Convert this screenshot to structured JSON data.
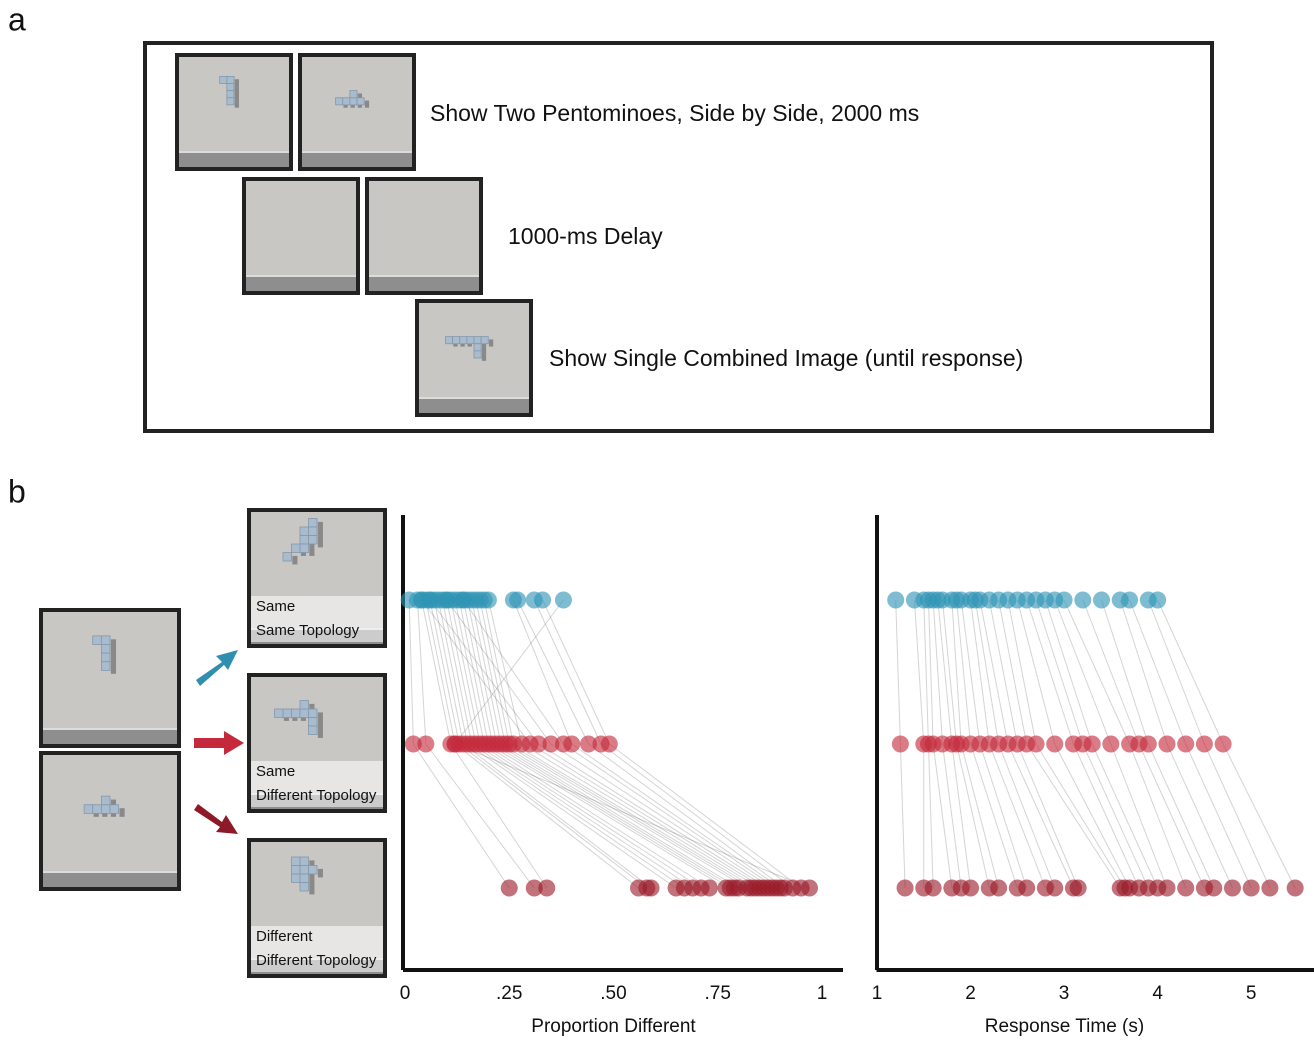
{
  "panel_labels": [
    "a",
    "b"
  ],
  "procedure": [
    "Show Two Pentominoes, Side by Side, 2000 ms",
    "1000-ms Delay",
    "Show Single Combined Image (until response)"
  ],
  "conditions": [
    {
      "lines": [
        "Same",
        "Same Topology"
      ],
      "color": "#2e8fae"
    },
    {
      "lines": [
        "Same",
        "Different Topology"
      ],
      "color": "#c42a3c"
    },
    {
      "lines": [
        "Different",
        "Different Topology"
      ],
      "color": "#b01d30"
    }
  ],
  "chart_data": [
    {
      "type": "strip",
      "x_label": "Proportion Different",
      "xlim": [
        0,
        1
      ],
      "xticks": [
        0,
        {
          "value": 0.25,
          "label": ".25"
        },
        {
          "value": 0.5,
          "label": ".50"
        },
        {
          "value": 0.75,
          "label": ".75"
        },
        1
      ],
      "connect": true,
      "series": [
        {
          "color": "#2e95b5",
          "values": [
            0.01,
            0.03,
            0.04,
            0.05,
            0.06,
            0.07,
            0.08,
            0.09,
            0.1,
            0.11,
            0.12,
            0.13,
            0.14,
            0.15,
            0.16,
            0.17,
            0.18,
            0.19,
            0.2,
            0.04,
            0.06,
            0.1,
            0.14,
            0.26,
            0.27,
            0.31,
            0.33,
            0.38
          ]
        },
        {
          "color": "#c42a3c",
          "values": [
            0.02,
            0.05,
            0.11,
            0.12,
            0.13,
            0.14,
            0.15,
            0.16,
            0.17,
            0.18,
            0.19,
            0.2,
            0.21,
            0.22,
            0.23,
            0.24,
            0.25,
            0.26,
            0.28,
            0.3,
            0.32,
            0.35,
            0.38,
            0.4,
            0.44,
            0.47,
            0.49,
            0.12
          ]
        },
        {
          "color": "#9b1b2a",
          "values": [
            0.25,
            0.31,
            0.34,
            0.56,
            0.58,
            0.59,
            0.65,
            0.67,
            0.69,
            0.71,
            0.73,
            0.77,
            0.78,
            0.79,
            0.8,
            0.82,
            0.83,
            0.84,
            0.85,
            0.86,
            0.87,
            0.88,
            0.89,
            0.9,
            0.91,
            0.93,
            0.95,
            0.97
          ]
        }
      ]
    },
    {
      "type": "strip",
      "x_label": "Response Time (s)",
      "xlim": [
        1,
        5.65
      ],
      "xticks": [
        1,
        2,
        3,
        4,
        5
      ],
      "connect": true,
      "series": [
        {
          "color": "#2e95b5",
          "values": [
            1.2,
            1.4,
            1.5,
            1.55,
            1.6,
            1.65,
            1.7,
            1.8,
            1.85,
            1.9,
            2.0,
            2.05,
            2.1,
            2.2,
            2.3,
            2.4,
            2.5,
            2.6,
            2.7,
            2.8,
            2.9,
            3.0,
            3.2,
            3.4,
            3.6,
            3.7,
            3.9,
            4.0
          ]
        },
        {
          "color": "#c42a3c",
          "values": [
            1.25,
            1.5,
            1.55,
            1.6,
            1.7,
            1.8,
            1.85,
            1.9,
            2.0,
            2.1,
            2.2,
            2.3,
            2.4,
            2.5,
            2.6,
            2.7,
            2.9,
            3.1,
            3.2,
            3.3,
            3.5,
            3.7,
            3.8,
            3.9,
            4.1,
            4.3,
            4.5,
            4.7
          ]
        },
        {
          "color": "#9b1b2a",
          "values": [
            1.3,
            1.5,
            1.6,
            1.8,
            1.9,
            2.0,
            2.2,
            2.3,
            2.5,
            2.6,
            2.8,
            2.9,
            3.1,
            3.15,
            3.6,
            3.65,
            3.7,
            3.8,
            3.9,
            4.0,
            4.1,
            4.3,
            4.5,
            4.6,
            4.8,
            5.0,
            5.2,
            5.47
          ]
        }
      ]
    }
  ]
}
